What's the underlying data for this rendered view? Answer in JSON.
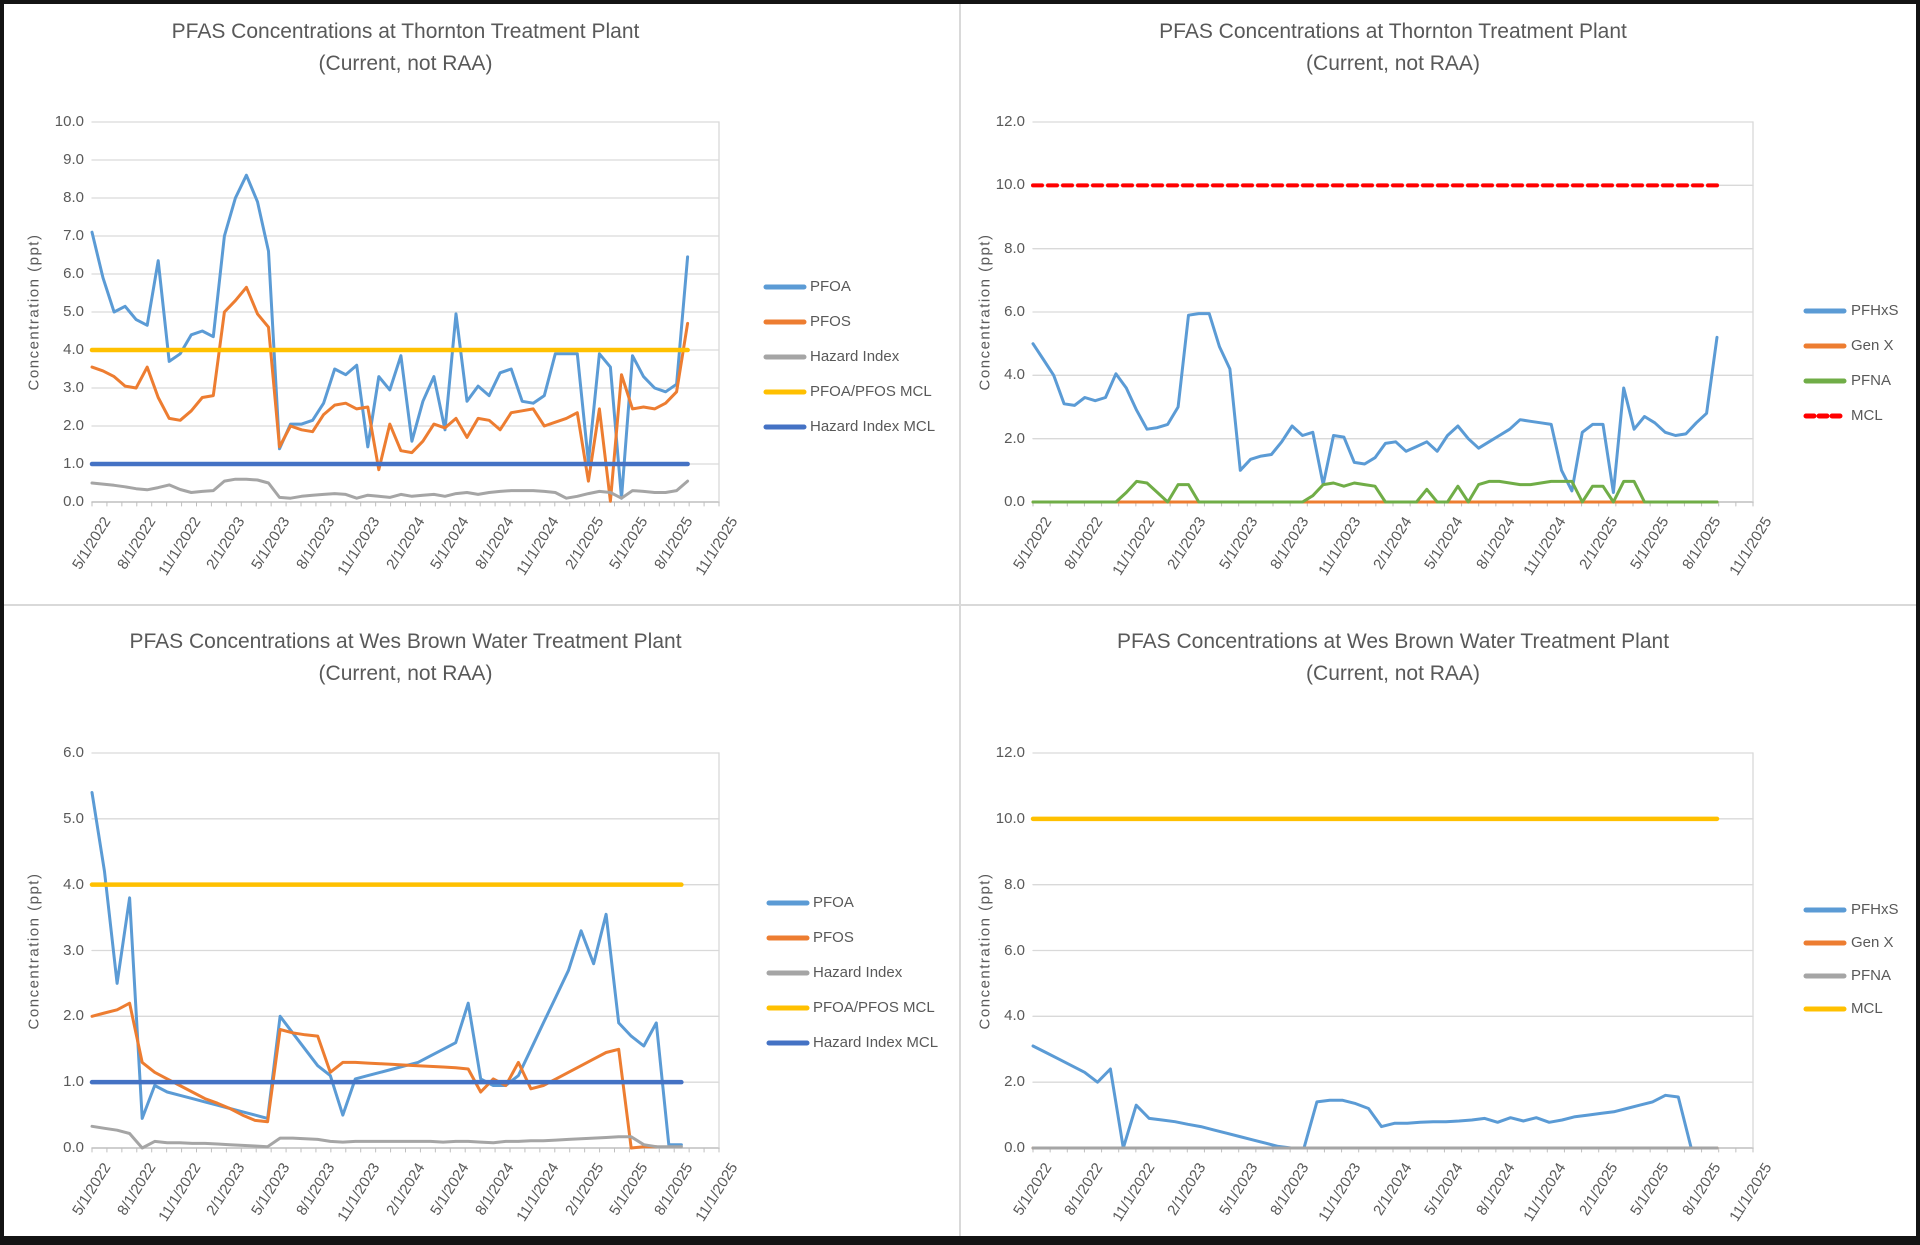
{
  "page": {
    "background": "#FFFFFF",
    "outer_border_color": "#141414",
    "panel_divider_color": "#D9D9D9",
    "axis_text_color": "#595959",
    "gridline_color": "#D9D9D9",
    "axis_line_color": "#BFBFBF"
  },
  "chart_data": [
    {
      "type": "line",
      "title": "PFAS Concentrations at Thornton Treatment Plant",
      "subtitle": "(Current, not RAA)",
      "ylabel": "Concentration (ppt)",
      "ylim": [
        0.0,
        10.0
      ],
      "ytick_labels": [
        "0.0",
        "1.0",
        "2.0",
        "3.0",
        "4.0",
        "5.0",
        "6.0",
        "7.0",
        "8.0",
        "9.0",
        "10.0"
      ],
      "xtick_labels": [
        "5/1/2022",
        "8/1/2022",
        "11/1/2022",
        "2/1/2023",
        "5/1/2023",
        "8/1/2023",
        "11/1/2023",
        "2/1/2024",
        "5/1/2024",
        "8/1/2024",
        "11/1/2024",
        "2/1/2025",
        "5/1/2025",
        "8/1/2025",
        "11/1/2025"
      ],
      "grid": true,
      "legend_position": "right",
      "data_end_fraction": 0.95,
      "series": [
        {
          "name": "PFOA",
          "color": "#5B9BD5",
          "style": "solid",
          "values": [
            7.1,
            5.9,
            5.0,
            5.15,
            4.8,
            4.65,
            6.35,
            3.7,
            3.9,
            4.4,
            4.5,
            4.35,
            7.0,
            8.0,
            8.6,
            7.9,
            6.6,
            1.4,
            2.05,
            2.05,
            2.15,
            2.6,
            3.5,
            3.35,
            3.6,
            1.45,
            3.3,
            2.95,
            3.85,
            1.6,
            2.65,
            3.3,
            1.9,
            4.95,
            2.65,
            3.05,
            2.8,
            3.4,
            3.5,
            2.65,
            2.6,
            2.8,
            3.9,
            3.9,
            3.9,
            1.05,
            3.9,
            3.55,
            0.1,
            3.85,
            3.3,
            3.0,
            2.9,
            3.1,
            6.45
          ]
        },
        {
          "name": "PFOS",
          "color": "#ED7D31",
          "style": "solid",
          "values": [
            3.55,
            3.45,
            3.3,
            3.05,
            3.0,
            3.55,
            2.75,
            2.2,
            2.15,
            2.4,
            2.75,
            2.8,
            5.0,
            5.3,
            5.65,
            4.95,
            4.6,
            1.45,
            2.0,
            1.9,
            1.85,
            2.3,
            2.55,
            2.6,
            2.45,
            2.5,
            0.85,
            2.05,
            1.35,
            1.3,
            1.6,
            2.05,
            1.95,
            2.2,
            1.7,
            2.2,
            2.15,
            1.9,
            2.35,
            2.4,
            2.45,
            2.0,
            2.1,
            2.2,
            2.35,
            0.55,
            2.45,
            0.02,
            3.35,
            2.45,
            2.5,
            2.45,
            2.6,
            2.9,
            4.7
          ]
        },
        {
          "name": "Hazard Index",
          "color": "#A5A5A5",
          "style": "solid",
          "values": [
            0.5,
            0.47,
            0.44,
            0.4,
            0.35,
            0.32,
            0.38,
            0.45,
            0.33,
            0.25,
            0.28,
            0.3,
            0.55,
            0.6,
            0.6,
            0.58,
            0.5,
            0.12,
            0.1,
            0.15,
            0.18,
            0.2,
            0.22,
            0.2,
            0.1,
            0.18,
            0.15,
            0.12,
            0.2,
            0.15,
            0.18,
            0.2,
            0.15,
            0.22,
            0.25,
            0.2,
            0.25,
            0.28,
            0.3,
            0.3,
            0.3,
            0.28,
            0.25,
            0.1,
            0.15,
            0.22,
            0.28,
            0.25,
            0.1,
            0.3,
            0.28,
            0.25,
            0.25,
            0.3,
            0.55
          ]
        },
        {
          "name": "PFOA/PFOS MCL",
          "color": "#FFC000",
          "style": "solid",
          "ref_value": 4.0
        },
        {
          "name": "Hazard Index MCL",
          "color": "#4472C4",
          "style": "solid",
          "ref_value": 1.0
        }
      ]
    },
    {
      "type": "line",
      "title": "PFAS Concentrations at Thornton Treatment Plant",
      "subtitle": "(Current, not RAA)",
      "ylabel": "Concentration (ppt)",
      "ylim": [
        0.0,
        12.0
      ],
      "ytick_labels": [
        "0.0",
        "2.0",
        "4.0",
        "6.0",
        "8.0",
        "10.0",
        "12.0"
      ],
      "xtick_labels": [
        "5/1/2022",
        "8/1/2022",
        "11/1/2022",
        "2/1/2023",
        "5/1/2023",
        "8/1/2023",
        "11/1/2023",
        "2/1/2024",
        "5/1/2024",
        "8/1/2024",
        "11/1/2024",
        "2/1/2025",
        "5/1/2025",
        "8/1/2025",
        "11/1/2025"
      ],
      "grid": true,
      "legend_position": "right",
      "data_end_fraction": 0.95,
      "series": [
        {
          "name": "PFHxS",
          "color": "#5B9BD5",
          "style": "solid",
          "values": [
            5.0,
            4.5,
            4.0,
            3.1,
            3.05,
            3.3,
            3.2,
            3.3,
            4.05,
            3.6,
            2.9,
            2.3,
            2.35,
            2.45,
            3.0,
            5.9,
            5.95,
            5.95,
            4.9,
            4.2,
            1.0,
            1.35,
            1.45,
            1.5,
            1.9,
            2.4,
            2.1,
            2.2,
            0.55,
            2.1,
            2.05,
            1.25,
            1.2,
            1.4,
            1.85,
            1.9,
            1.6,
            1.75,
            1.9,
            1.6,
            2.1,
            2.4,
            2.0,
            1.7,
            1.9,
            2.1,
            2.3,
            2.6,
            2.55,
            2.5,
            2.45,
            1.0,
            0.35,
            2.2,
            2.45,
            2.45,
            0.3,
            3.6,
            2.3,
            2.7,
            2.5,
            2.2,
            2.1,
            2.15,
            2.5,
            2.8,
            5.2
          ]
        },
        {
          "name": "Gen X",
          "color": "#ED7D31",
          "style": "solid",
          "values": [
            0,
            0,
            0,
            0,
            0,
            0,
            0,
            0,
            0,
            0,
            0,
            0,
            0,
            0,
            0,
            0,
            0,
            0,
            0,
            0,
            0,
            0,
            0,
            0,
            0,
            0,
            0,
            0,
            0,
            0,
            0,
            0,
            0,
            0,
            0,
            0,
            0,
            0,
            0,
            0,
            0,
            0,
            0,
            0,
            0,
            0,
            0,
            0,
            0,
            0,
            0,
            0,
            0,
            0,
            0,
            0,
            0,
            0,
            0,
            0,
            0,
            0,
            0,
            0,
            0,
            0,
            0
          ]
        },
        {
          "name": "PFNA",
          "color": "#70AD47",
          "style": "solid",
          "values": [
            0,
            0,
            0,
            0,
            0,
            0,
            0,
            0,
            0,
            0.3,
            0.65,
            0.6,
            0.3,
            0,
            0.55,
            0.55,
            0,
            0,
            0,
            0,
            0,
            0,
            0,
            0,
            0,
            0,
            0,
            0.2,
            0.55,
            0.6,
            0.5,
            0.6,
            0.55,
            0.5,
            0,
            0,
            0,
            0,
            0.4,
            0,
            0,
            0.5,
            0,
            0.55,
            0.65,
            0.65,
            0.6,
            0.55,
            0.55,
            0.6,
            0.65,
            0.65,
            0.65,
            0,
            0.5,
            0.5,
            0,
            0.65,
            0.65,
            0,
            0,
            0,
            0,
            0,
            0,
            0,
            0
          ]
        },
        {
          "name": "MCL",
          "color": "#FF0000",
          "style": "dashed",
          "ref_value": 10.0
        }
      ]
    },
    {
      "type": "line",
      "title": "PFAS Concentrations at Wes Brown Water Treatment Plant",
      "subtitle": "(Current, not RAA)",
      "ylabel": "Concentration (ppt)",
      "ylim": [
        0.0,
        6.0
      ],
      "ytick_labels": [
        "0.0",
        "1.0",
        "2.0",
        "3.0",
        "4.0",
        "5.0",
        "6.0"
      ],
      "xtick_labels": [
        "5/1/2022",
        "8/1/2022",
        "11/1/2022",
        "2/1/2023",
        "5/1/2023",
        "8/1/2023",
        "11/1/2023",
        "2/1/2024",
        "5/1/2024",
        "8/1/2024",
        "11/1/2024",
        "2/1/2025",
        "5/1/2025",
        "8/1/2025",
        "11/1/2025"
      ],
      "grid": true,
      "legend_position": "right",
      "data_end_fraction": 0.94,
      "series": [
        {
          "name": "PFOA",
          "color": "#5B9BD5",
          "style": "solid",
          "values": [
            5.4,
            4.2,
            2.5,
            3.8,
            0.45,
            0.95,
            0.85,
            0.8,
            0.75,
            0.7,
            0.65,
            0.6,
            0.55,
            0.5,
            0.45,
            2.0,
            1.75,
            1.5,
            1.25,
            1.1,
            0.5,
            1.05,
            1.1,
            1.15,
            1.2,
            1.25,
            1.3,
            1.4,
            1.5,
            1.6,
            2.2,
            1.05,
            0.95,
            0.95,
            1.1,
            1.5,
            1.9,
            2.3,
            2.7,
            3.3,
            2.8,
            3.55,
            1.9,
            1.7,
            1.55,
            1.9,
            0.05,
            0.05
          ]
        },
        {
          "name": "PFOS",
          "color": "#ED7D31",
          "style": "solid",
          "values": [
            2.0,
            2.05,
            2.1,
            2.2,
            1.3,
            1.15,
            1.05,
            0.95,
            0.85,
            0.75,
            0.68,
            0.6,
            0.5,
            0.42,
            0.4,
            1.8,
            1.75,
            1.72,
            1.7,
            1.15,
            1.3,
            1.3,
            1.29,
            1.28,
            1.27,
            1.26,
            1.25,
            1.24,
            1.23,
            1.22,
            1.2,
            0.85,
            1.05,
            0.95,
            1.3,
            0.9,
            0.95,
            1.05,
            1.15,
            1.25,
            1.35,
            1.45,
            1.5,
            0.0,
            0.02,
            0.02,
            null,
            null
          ]
        },
        {
          "name": "Hazard Index",
          "color": "#A5A5A5",
          "style": "solid",
          "values": [
            0.33,
            0.3,
            0.27,
            0.22,
            0.0,
            0.1,
            0.08,
            0.08,
            0.07,
            0.07,
            0.06,
            0.05,
            0.04,
            0.03,
            0.02,
            0.15,
            0.15,
            0.14,
            0.13,
            0.1,
            0.09,
            0.1,
            0.1,
            0.1,
            0.1,
            0.1,
            0.1,
            0.1,
            0.09,
            0.1,
            0.1,
            0.09,
            0.08,
            0.1,
            0.1,
            0.11,
            0.11,
            0.12,
            0.13,
            0.14,
            0.15,
            0.16,
            0.17,
            0.17,
            0.05,
            0.02,
            0.02,
            0.02
          ]
        },
        {
          "name": "PFOA/PFOS MCL",
          "color": "#FFC000",
          "style": "solid",
          "ref_value": 4.0
        },
        {
          "name": "Hazard Index MCL",
          "color": "#4472C4",
          "style": "solid",
          "ref_value": 1.0
        }
      ]
    },
    {
      "type": "line",
      "title": "PFAS Concentrations at Wes Brown Water Treatment Plant",
      "subtitle": "(Current, not RAA)",
      "ylabel": "Concentration (ppt)",
      "ylim": [
        0.0,
        12.0
      ],
      "ytick_labels": [
        "0.0",
        "2.0",
        "4.0",
        "6.0",
        "8.0",
        "10.0",
        "12.0"
      ],
      "xtick_labels": [
        "5/1/2022",
        "8/1/2022",
        "11/1/2022",
        "2/1/2023",
        "5/1/2023",
        "8/1/2023",
        "11/1/2023",
        "2/1/2024",
        "5/1/2024",
        "8/1/2024",
        "11/1/2024",
        "2/1/2025",
        "5/1/2025",
        "8/1/2025",
        "11/1/2025"
      ],
      "grid": true,
      "legend_position": "right",
      "data_end_fraction": 0.95,
      "series": [
        {
          "name": "PFHxS",
          "color": "#5B9BD5",
          "style": "solid",
          "values": [
            3.1,
            2.9,
            2.7,
            2.5,
            2.3,
            2.0,
            2.4,
            0.0,
            1.3,
            0.9,
            0.85,
            0.8,
            0.72,
            0.65,
            0.55,
            0.45,
            0.35,
            0.25,
            0.15,
            0.05,
            0.0,
            0.0,
            1.4,
            1.45,
            1.45,
            1.35,
            1.2,
            0.65,
            0.75,
            0.75,
            0.78,
            0.8,
            0.8,
            0.82,
            0.85,
            0.9,
            0.78,
            0.92,
            0.82,
            0.92,
            0.78,
            0.85,
            0.95,
            1.0,
            1.05,
            1.1,
            1.2,
            1.3,
            1.4,
            1.6,
            1.55,
            0.0,
            0.0,
            null
          ]
        },
        {
          "name": "Gen X",
          "color": "#ED7D31",
          "style": "solid",
          "values": [
            0,
            0,
            0,
            0,
            0,
            0,
            0,
            0,
            0,
            0,
            0,
            0,
            0,
            0,
            0,
            0,
            0,
            0,
            0,
            0,
            0,
            0,
            0,
            0,
            0,
            0,
            0,
            0,
            0,
            0,
            0,
            0,
            0,
            0,
            0,
            0,
            0,
            0,
            0,
            0,
            0,
            0,
            0,
            0,
            0,
            0,
            0,
            0,
            0,
            0,
            0,
            0,
            0,
            0
          ]
        },
        {
          "name": "PFNA",
          "color": "#A5A5A5",
          "style": "solid",
          "values": [
            0,
            0,
            0,
            0,
            0,
            0,
            0,
            0,
            0,
            0,
            0,
            0,
            0,
            0,
            0,
            0,
            0,
            0,
            0,
            0,
            0,
            0,
            0,
            0,
            0,
            0,
            0,
            0,
            0,
            0,
            0,
            0,
            0,
            0,
            0,
            0,
            0,
            0,
            0,
            0,
            0,
            0,
            0,
            0,
            0,
            0,
            0,
            0,
            0,
            0,
            0,
            0,
            0,
            0
          ]
        },
        {
          "name": "MCL",
          "color": "#FFC000",
          "style": "solid",
          "ref_value": 10.0
        }
      ]
    }
  ]
}
